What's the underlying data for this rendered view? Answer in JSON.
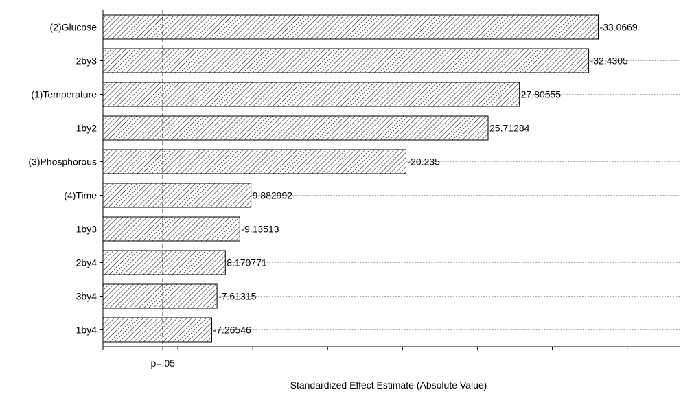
{
  "chart_data": {
    "type": "bar",
    "orientation": "horizontal",
    "title": "",
    "xlabel": "Standardized Effect Estimate (Absolute Value)",
    "ylabel": "",
    "categories": [
      "(2)Glucose",
      "2by3",
      "(1)Temperature",
      "1by2",
      "(3)Phosphorous",
      "(4)Time",
      "1by3",
      "2by4",
      "3by4",
      "1by4"
    ],
    "values": [
      33.0669,
      32.4305,
      27.80555,
      25.71284,
      20.235,
      9.882992,
      9.13513,
      8.170771,
      7.61315,
      7.26546
    ],
    "value_labels": [
      "-33.0669",
      "-32.4305",
      "27.80555",
      "25.71284",
      "-20.235",
      "9.882992",
      "-9.13513",
      "8.170771",
      "-7.61315",
      "-7.26546"
    ],
    "xlim": [
      0,
      38.5
    ],
    "x_ticks": [
      0,
      5,
      10,
      15,
      20,
      25,
      30,
      35
    ],
    "threshold": {
      "value": 4.0,
      "label": "p=.05"
    },
    "grid": true,
    "bar_fill": "hatched",
    "colors": {
      "bar_stroke": "#000000",
      "hatch": "#000000",
      "grid": "#a8a8a8",
      "threshold": "#000000"
    }
  }
}
